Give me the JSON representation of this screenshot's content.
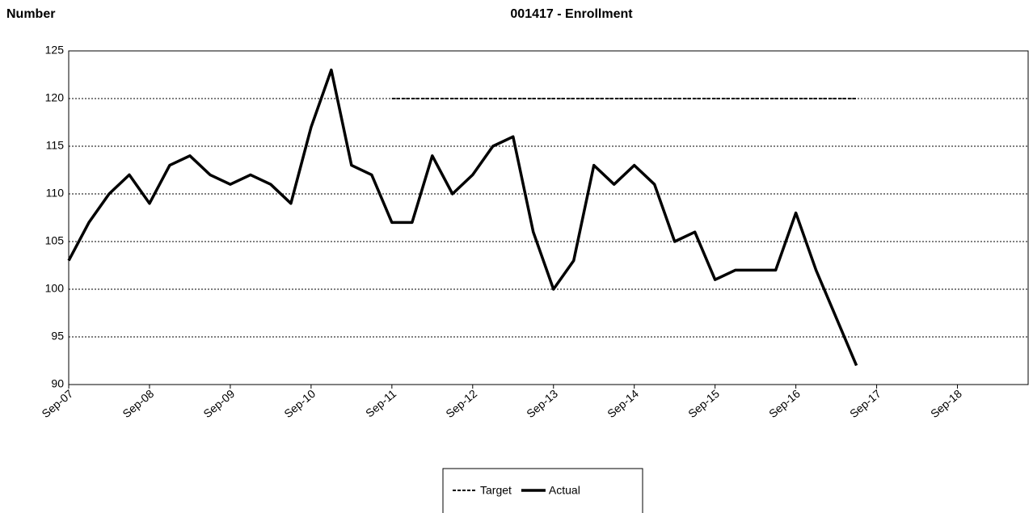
{
  "chart_data": {
    "type": "line",
    "title": "001417 - Enrollment",
    "ylabel": "Number",
    "categories": [
      "Sep-07",
      null,
      null,
      null,
      "Sep-08",
      null,
      null,
      null,
      "Sep-09",
      null,
      null,
      null,
      "Sep-10",
      null,
      null,
      null,
      "Sep-11",
      null,
      null,
      null,
      "Sep-12",
      null,
      null,
      null,
      "Sep-13",
      null,
      null,
      null,
      "Sep-14",
      null,
      null,
      null,
      "Sep-15",
      null,
      null,
      null,
      "Sep-16",
      null,
      null,
      null,
      "Sep-17",
      null,
      null,
      null,
      "Sep-18",
      null,
      null,
      null
    ],
    "series": [
      {
        "name": "Target",
        "color": "#000000",
        "dashed": true,
        "values": [
          null,
          null,
          null,
          null,
          null,
          null,
          null,
          null,
          null,
          null,
          null,
          null,
          null,
          null,
          null,
          null,
          120,
          120,
          120,
          120,
          120,
          120,
          120,
          120,
          120,
          120,
          120,
          120,
          120,
          120,
          120,
          120,
          120,
          120,
          120,
          120,
          120,
          120,
          120,
          120,
          null,
          null,
          null,
          null,
          null,
          null,
          null,
          null
        ]
      },
      {
        "name": "Actual",
        "color": "#000000",
        "dashed": false,
        "values": [
          103,
          107,
          110,
          112,
          109,
          113,
          114,
          112,
          111,
          112,
          111,
          109,
          117,
          123,
          113,
          112,
          107,
          107,
          114,
          110,
          112,
          115,
          116,
          106,
          100,
          103,
          113,
          111,
          113,
          111,
          105,
          106,
          101,
          102,
          102,
          102,
          108,
          102,
          97,
          92,
          null,
          null,
          null,
          null,
          null,
          null,
          null,
          null
        ]
      }
    ],
    "ylim": [
      90,
      125
    ],
    "yticks": [
      90,
      95,
      100,
      105,
      110,
      115,
      120,
      125
    ],
    "grid": true,
    "legend": "bottom"
  }
}
